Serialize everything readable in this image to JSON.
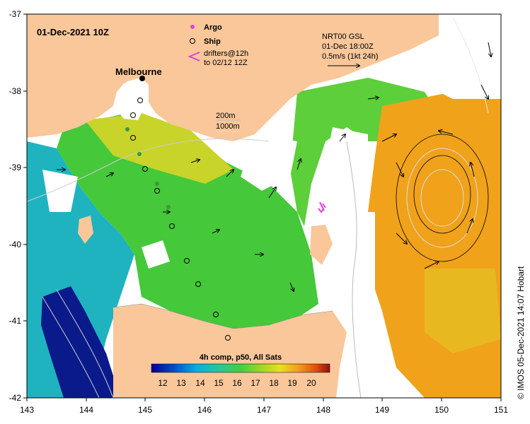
{
  "map": {
    "datetime": "01-Dec-2021 10Z",
    "city": "Melbourne",
    "legend": {
      "argo": "Argo",
      "ship": "Ship",
      "drifters_line1": "drifters@12h",
      "drifters_line2": "to 02/12 12Z"
    },
    "contours": {
      "c200": "200m",
      "c1000": "1000m"
    },
    "current_info": {
      "line1": "NRT00 GSL",
      "line2": "01-Dec 18:00Z",
      "line3": "0.5m/s (1kt 24h)"
    },
    "colorbar": {
      "title": "4h comp, p50, All Sats",
      "ticks": [
        "12",
        "13",
        "14",
        "15",
        "16",
        "17",
        "18",
        "19",
        "20"
      ]
    },
    "credit": "© IMOS 05-Dec-2021 14:07 Hobart",
    "x_ticks": [
      "143",
      "144",
      "145",
      "146",
      "147",
      "148",
      "149",
      "150",
      "151"
    ],
    "y_ticks": [
      "-37",
      "-38",
      "-39",
      "-40",
      "-41",
      "-42"
    ],
    "colors": {
      "land": "#f9c79a",
      "cloud": "#ffffff",
      "cold": "#0a1a8a",
      "cool": "#1fb3c0",
      "mid": "#3ec83a",
      "warm": "#d9d21a",
      "hot": "#f0a21a",
      "argo": "#e040e0"
    }
  }
}
